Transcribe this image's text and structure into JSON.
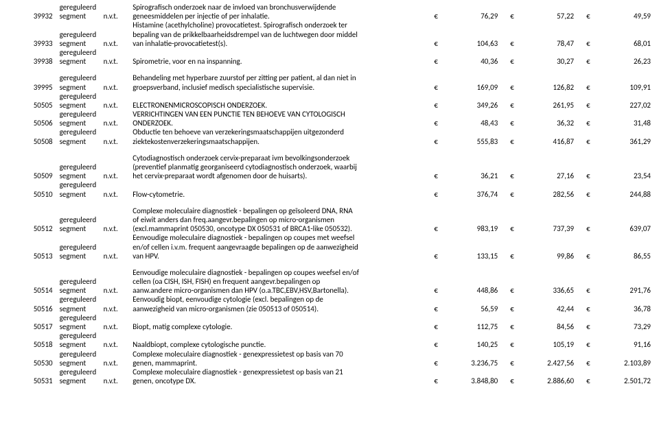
{
  "currency_symbol": "€",
  "segment_label_top": "gereguleerd",
  "segment_label_bot": "segment",
  "nvt_label": "n.v.t.",
  "rows": [
    {
      "code": "39932",
      "desc_lines": [
        "Spirografisch onderzoek naar de invloed van bronchusverwijdende",
        "geneesmiddelen per injectie of per inhalatie."
      ],
      "p1": "76,29",
      "p2": "57,22",
      "p3": "49,59",
      "gap_before": false
    },
    {
      "code": "39933",
      "desc_lines": [
        "Histamine (acethylcholine) provocatietest. Spirografisch onderzoek ter",
        "bepaling van de prikkelbaarheidsdrempel van de luchtwegen door middel",
        "van inhalatie-provocatietest(s)."
      ],
      "p1": "104,63",
      "p2": "78,47",
      "p3": "68,01",
      "gap_before": false
    },
    {
      "code": "39938",
      "desc_lines": [
        "Spirometrie, voor en na inspanning."
      ],
      "p1": "40,36",
      "p2": "30,27",
      "p3": "26,23",
      "gap_before": false
    },
    {
      "code": "39995",
      "desc_lines": [
        "Behandeling met hyperbare zuurstof per zitting per patient, al dan niet in",
        "groepsverband, inclusief medisch specialistische supervisie."
      ],
      "p1": "169,09",
      "p2": "126,82",
      "p3": "109,91",
      "gap_before": true
    },
    {
      "code": "50505",
      "desc_lines": [
        "ELECTRONENMICROSCOPISCH ONDERZOEK."
      ],
      "p1": "349,26",
      "p2": "261,95",
      "p3": "227,02",
      "gap_before": false
    },
    {
      "code": "50506",
      "desc_lines": [
        "VERRICHTINGEN VAN EEN PUNCTIE TEN BEHOEVE VAN CYTOLOGISCH",
        "ONDERZOEK."
      ],
      "p1": "48,43",
      "p2": "36,32",
      "p3": "31,48",
      "gap_before": false
    },
    {
      "code": "50508",
      "desc_lines": [
        "Obductie ten behoeve van verzekeringsmaatschappijen uitgezonderd",
        "ziektekostenverzekeringsmaatschappijen."
      ],
      "p1": "555,83",
      "p2": "416,87",
      "p3": "361,29",
      "gap_before": false
    },
    {
      "code": "50509",
      "desc_lines": [
        "Cytodiagnostisch onderzoek cervix-preparaat ivm bevolkingsonderzoek",
        "(preventief planmatig georganiseerd cytodiagnostisch onderzoek, waarbij",
        "het cervix-preparaat wordt afgenomen door de huisarts)."
      ],
      "p1": "36,21",
      "p2": "27,16",
      "p3": "23,54",
      "gap_before": true
    },
    {
      "code": "50510",
      "desc_lines": [
        "Flow-cytometrie."
      ],
      "p1": "376,74",
      "p2": "282,56",
      "p3": "244,88",
      "gap_before": false
    },
    {
      "code": "50512",
      "desc_lines": [
        "Complexe moleculaire diagnostiek - bepalingen op geïsoleerd DNA, RNA",
        "of eiwit anders dan freq.aangevr.bepalingen op micro-organismen",
        "(excl.mammaprint 050530, oncotype DX 050531 of BRCA1-like 050532)."
      ],
      "p1": "983,19",
      "p2": "737,39",
      "p3": "639,07",
      "gap_before": true
    },
    {
      "code": "50513",
      "desc_lines": [
        "Eenvoudige moleculaire diagnostiek - bepalingen op coupes met weefsel",
        "en/of cellen i.v.m. frequent aangevraagde bepalingen op de aanwezigheid",
        "van HPV."
      ],
      "p1": "133,15",
      "p2": "99,86",
      "p3": "86,55",
      "gap_before": false
    },
    {
      "code": "50514",
      "desc_lines": [
        "Eenvoudige moleculaire diagnostiek - bepalingen op coupes weefsel en/of",
        "cellen (oa CISH, ISH, FISH) en frequent aangevr.bepalingen op",
        "aanw.andere micro-organismen dan HPV (o.a.TBC,EBV,HSV,Bartonella)."
      ],
      "p1": "448,86",
      "p2": "336,65",
      "p3": "291,76",
      "gap_before": true
    },
    {
      "code": "50516",
      "desc_lines": [
        "Eenvoudig biopt, eenvoudige cytologie (excl. bepalingen op de",
        "aanwezigheid van micro-organismen (zie 050513 of 050514)."
      ],
      "p1": "56,59",
      "p2": "42,44",
      "p3": "36,78",
      "gap_before": false
    },
    {
      "code": "50517",
      "desc_lines": [
        "Biopt, matig complexe cytologie."
      ],
      "p1": "112,75",
      "p2": "84,56",
      "p3": "73,29",
      "gap_before": false
    },
    {
      "code": "50518",
      "desc_lines": [
        "Naaldbiopt, complexe cytologische punctie."
      ],
      "p1": "140,25",
      "p2": "105,19",
      "p3": "91,16",
      "gap_before": false
    },
    {
      "code": "50530",
      "desc_lines": [
        "Complexe moleculaire diagnostiek - genexpressietest op basis van 70",
        "genen, mammaprint."
      ],
      "p1": "3.236,75",
      "p2": "2.427,56",
      "p3": "2.103,89",
      "gap_before": false
    },
    {
      "code": "50531",
      "desc_lines": [
        "Complexe moleculaire diagnostiek - genexpressietest op basis van 21",
        "genen, oncotype DX."
      ],
      "p1": "3.848,80",
      "p2": "2.886,60",
      "p3": "2.501,72",
      "gap_before": false
    }
  ]
}
